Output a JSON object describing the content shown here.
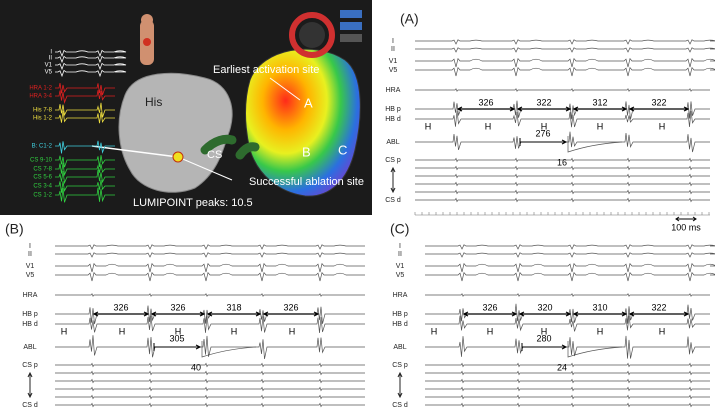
{
  "map_panel": {
    "channels": [
      "I",
      "II",
      "V1",
      "V5",
      "HRA 1-2",
      "HRA 3-4",
      "His 7-8",
      "His 1-2",
      "B: C1-2",
      "CS 9-10",
      "CS 7-8",
      "CS 5-6",
      "CS 3-4",
      "CS 1-2"
    ],
    "his": "His",
    "cs": "CS",
    "earliest": "Earliest activation site",
    "sites": [
      "A",
      "B",
      "C"
    ],
    "ablation_site": "Successful ablation site",
    "lumipoint": "LUMIPOINT peaks: 10.5"
  },
  "panels": [
    {
      "label": "(A)",
      "leads": [
        "I",
        "II",
        "V1",
        "V5",
        "HRA",
        "HB p",
        "HB d",
        "ABL",
        "CS p",
        "CS d"
      ],
      "intervals": [
        326,
        322,
        312,
        322
      ],
      "ablation_interval": 276,
      "local_interval": 16
    },
    {
      "label": "(B)",
      "leads": [
        "I",
        "II",
        "V1",
        "V5",
        "HRA",
        "HB p",
        "HB d",
        "ABL",
        "CS p",
        "CS d"
      ],
      "intervals": [
        326,
        326,
        318,
        326
      ],
      "ablation_interval": 305,
      "local_interval": 40
    },
    {
      "label": "(C)",
      "leads": [
        "I",
        "II",
        "V1",
        "V5",
        "HRA",
        "HB p",
        "HB d",
        "ABL",
        "CS p",
        "CS d"
      ],
      "intervals": [
        326,
        320,
        310,
        322
      ],
      "ablation_interval": 280,
      "local_interval": 24
    }
  ],
  "h_marker": "H",
  "scale_bar": "100 ms"
}
